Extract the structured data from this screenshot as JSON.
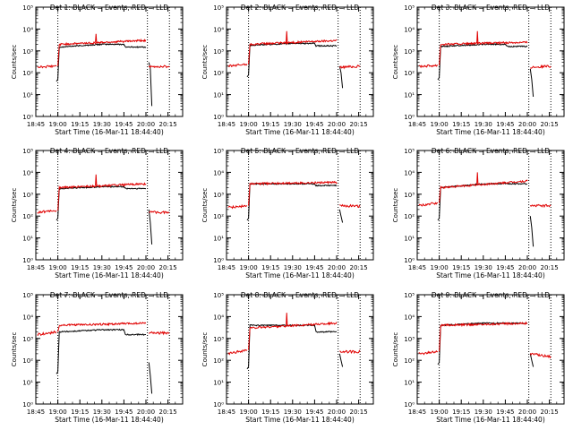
{
  "chart_data": {
    "type": "line",
    "layout": "3x3 grid",
    "title_pattern": "Det N: BLACK = Events, RED = LLD",
    "xlabel": "Start Time (16-Mar-11 18:44:40)",
    "ylabel": "Counts/sec",
    "x_ticks": [
      "18:45",
      "19:00",
      "19:15",
      "19:30",
      "19:45",
      "20:00",
      "20:15"
    ],
    "x_tick_minutes": [
      0,
      15,
      30,
      45,
      60,
      75,
      90
    ],
    "xlim_minutes": [
      0,
      100
    ],
    "y_scale": "log",
    "ylim": [
      1,
      100000
    ],
    "y_ticks": [
      "10⁰",
      "10¹",
      "10²",
      "10³",
      "10⁴",
      "10⁵"
    ],
    "vertical_markers_minutes": [
      15,
      76,
      91
    ],
    "colors": {
      "events": "#000000",
      "lld": "#e00000",
      "axes": "#000000"
    },
    "panels": [
      {
        "title": "Det 1: BLACK = Events, RED = LLD",
        "events": {
          "pre": 50,
          "day": [
            [
              16,
              1500
            ],
            [
              45,
              2000
            ],
            [
              60,
              2000
            ],
            [
              61,
              1500
            ],
            [
              75,
              1500
            ]
          ],
          "post": [
            [
              77,
              300
            ],
            [
              78,
              150
            ],
            [
              79,
              3
            ]
          ]
        },
        "lld": {
          "pre": [
            [
              1,
              180
            ],
            [
              14,
              200
            ]
          ],
          "day": [
            [
              16,
              2000
            ],
            [
              75,
              3000
            ]
          ],
          "spike": [
            [
              41,
              6000
            ]
          ],
          "post": [
            [
              77,
              180
            ],
            [
              91,
              200
            ]
          ]
        }
      },
      {
        "title": "Det 2: BLACK = Events, RED = LLD",
        "events": {
          "pre": 80,
          "day": [
            [
              16,
              1800
            ],
            [
              45,
              2200
            ],
            [
              60,
              2200
            ],
            [
              61,
              1700
            ],
            [
              75,
              1700
            ]
          ],
          "post": [
            [
              77,
              200
            ],
            [
              78,
              100
            ],
            [
              79,
              20
            ]
          ]
        },
        "lld": {
          "pre": [
            [
              1,
              200
            ],
            [
              14,
              250
            ]
          ],
          "day": [
            [
              16,
              2000
            ],
            [
              75,
              3000
            ]
          ],
          "spike": [
            [
              41,
              8000
            ]
          ],
          "post": [
            [
              77,
              180
            ],
            [
              91,
              200
            ]
          ]
        }
      },
      {
        "title": "Det 3: BLACK = Events, RED = LLD",
        "events": {
          "pre": 60,
          "day": [
            [
              16,
              1600
            ],
            [
              45,
              2000
            ],
            [
              60,
              2000
            ],
            [
              61,
              1600
            ],
            [
              75,
              1600
            ]
          ],
          "post": [
            [
              77,
              150
            ],
            [
              78,
              50
            ],
            [
              79,
              8
            ]
          ]
        },
        "lld": {
          "pre": [
            [
              1,
              200
            ],
            [
              14,
              220
            ]
          ],
          "day": [
            [
              16,
              2000
            ],
            [
              75,
              2500
            ]
          ],
          "spike": [
            [
              41,
              8000
            ]
          ],
          "post": [
            [
              77,
              180
            ],
            [
              91,
              200
            ]
          ]
        }
      },
      {
        "title": "Det 4: BLACK = Events, RED = LLD",
        "events": {
          "pre": 80,
          "day": [
            [
              16,
              1800
            ],
            [
              45,
              2200
            ],
            [
              60,
              2200
            ],
            [
              61,
              1800
            ],
            [
              75,
              1800
            ]
          ],
          "post": [
            [
              77,
              200
            ],
            [
              78,
              50
            ],
            [
              79,
              5
            ]
          ]
        },
        "lld": {
          "pre": [
            [
              1,
              150
            ],
            [
              14,
              180
            ]
          ],
          "day": [
            [
              16,
              2000
            ],
            [
              75,
              3000
            ]
          ],
          "spike": [
            [
              41,
              8000
            ]
          ],
          "post": [
            [
              77,
              150
            ],
            [
              91,
              150
            ]
          ]
        }
      },
      {
        "title": "Det 5: BLACK = Events, RED = LLD",
        "events": {
          "pre": 80,
          "day": [
            [
              16,
              3000
            ],
            [
              45,
              3000
            ],
            [
              60,
              3000
            ],
            [
              61,
              2500
            ],
            [
              75,
              2500
            ]
          ],
          "post": [
            [
              77,
              200
            ],
            [
              78,
              100
            ],
            [
              79,
              50
            ]
          ]
        },
        "lld": {
          "pre": [
            [
              1,
              250
            ],
            [
              14,
              300
            ]
          ],
          "day": [
            [
              16,
              3000
            ],
            [
              75,
              3500
            ]
          ],
          "spike": [],
          "post": [
            [
              77,
              300
            ],
            [
              91,
              280
            ]
          ]
        }
      },
      {
        "title": "Det 6: BLACK = Events, RED = LLD",
        "events": {
          "pre": 80,
          "day": [
            [
              16,
              2000
            ],
            [
              45,
              3000
            ],
            [
              60,
              3000
            ],
            [
              61,
              3000
            ],
            [
              75,
              3000
            ]
          ],
          "post": [
            [
              77,
              100
            ],
            [
              78,
              30
            ],
            [
              79,
              4
            ]
          ]
        },
        "lld": {
          "pre": [
            [
              1,
              300
            ],
            [
              14,
              400
            ]
          ],
          "day": [
            [
              16,
              2000
            ],
            [
              75,
              4000
            ]
          ],
          "spike": [
            [
              41,
              10000
            ]
          ],
          "post": [
            [
              77,
              300
            ],
            [
              91,
              300
            ]
          ]
        }
      },
      {
        "title": "Det 7: BLACK = Events, RED = LLD",
        "events": {
          "pre": 30,
          "day": [
            [
              16,
              2000
            ],
            [
              45,
              2500
            ],
            [
              60,
              2500
            ],
            [
              61,
              1500
            ],
            [
              75,
              1500
            ]
          ],
          "post": [
            [
              77,
              80
            ],
            [
              78,
              20
            ],
            [
              79,
              3
            ]
          ]
        },
        "lld": {
          "pre": [
            [
              1,
              1500
            ],
            [
              14,
              2000
            ]
          ],
          "day": [
            [
              16,
              4000
            ],
            [
              75,
              5000
            ]
          ],
          "spike": [],
          "post": [
            [
              77,
              1800
            ],
            [
              91,
              1800
            ]
          ]
        }
      },
      {
        "title": "Det 8: BLACK = Events, RED = LLD",
        "events": {
          "pre": 50,
          "day": [
            [
              16,
              4000
            ],
            [
              45,
              4000
            ],
            [
              60,
              4000
            ],
            [
              61,
              2000
            ],
            [
              75,
              2000
            ]
          ],
          "post": [
            [
              77,
              200
            ],
            [
              78,
              100
            ],
            [
              79,
              50
            ]
          ]
        },
        "lld": {
          "pre": [
            [
              1,
              200
            ],
            [
              14,
              300
            ]
          ],
          "day": [
            [
              16,
              3000
            ],
            [
              75,
              5000
            ]
          ],
          "spike": [
            [
              41,
              15000
            ]
          ],
          "post": [
            [
              77,
              250
            ],
            [
              91,
              250
            ]
          ]
        }
      },
      {
        "title": "Det 9: BLACK = Events, RED = LLD",
        "events": {
          "pre": 80,
          "day": [
            [
              16,
              4000
            ],
            [
              45,
              5000
            ],
            [
              60,
              5000
            ],
            [
              61,
              5000
            ],
            [
              75,
              5000
            ]
          ],
          "post": [
            [
              77,
              200
            ],
            [
              78,
              100
            ],
            [
              79,
              50
            ]
          ]
        },
        "lld": {
          "pre": [
            [
              1,
              200
            ],
            [
              14,
              250
            ]
          ],
          "day": [
            [
              16,
              4000
            ],
            [
              75,
              5000
            ]
          ],
          "spike": [],
          "post": [
            [
              77,
              200
            ],
            [
              91,
              150
            ]
          ]
        }
      }
    ]
  }
}
